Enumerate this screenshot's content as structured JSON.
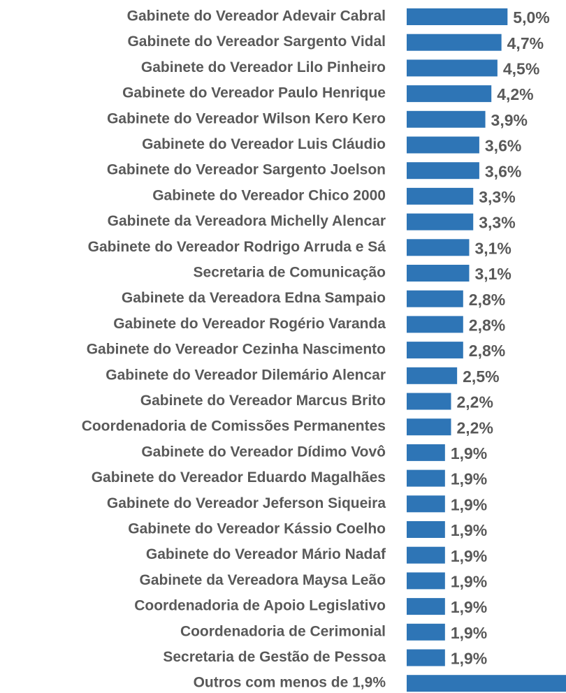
{
  "chart_data": {
    "type": "barh",
    "categories": [
      "Gabinete do Vereador Adevair Cabral",
      "Gabinete do Vereador Sargento Vidal",
      "Gabinete do Vereador Lilo Pinheiro",
      "Gabinete do Vereador Paulo Henrique",
      "Gabinete do Vereador Wilson Kero Kero",
      "Gabinete do Vereador Luis Cláudio",
      "Gabinete do Vereador Sargento Joelson",
      "Gabinete do Vereador Chico 2000",
      "Gabinete da Vereadora Michelly Alencar",
      "Gabinete do Vereador Rodrigo Arruda e Sá",
      "Secretaria de Comunicação",
      "Gabinete da Vereadora Edna Sampaio",
      "Gabinete do Vereador Rogério Varanda",
      "Gabinete do Vereador Cezinha Nascimento",
      "Gabinete do Vereador Dilemário Alencar",
      "Gabinete do Vereador Marcus Brito",
      "Coordenadoria de Comissões Permanentes",
      "Gabinete do Vereador Dídimo Vovô",
      "Gabinete do Vereador Eduardo Magalhães",
      "Gabinete do Vereador Jeferson Siqueira",
      "Gabinete do Vereador Kássio Coelho",
      "Gabinete do Vereador Mário Nadaf",
      "Gabinete da Vereadora Maysa Leão",
      "Coordenadoria de Apoio Legislativo",
      "Coordenadoria de Cerimonial",
      "Secretaria de Gestão de Pessoa",
      "Outros com menos de 1,9%"
    ],
    "values": [
      5.0,
      4.7,
      4.5,
      4.2,
      3.9,
      3.6,
      3.6,
      3.3,
      3.3,
      3.1,
      3.1,
      2.8,
      2.8,
      2.8,
      2.5,
      2.2,
      2.2,
      1.9,
      1.9,
      1.9,
      1.9,
      1.9,
      1.9,
      1.9,
      1.9,
      1.9,
      7.9
    ],
    "value_labels": [
      "5,0%",
      "4,7%",
      "4,5%",
      "4,2%",
      "3,9%",
      "3,6%",
      "3,6%",
      "3,3%",
      "3,3%",
      "3,1%",
      "3,1%",
      "2,8%",
      "2,8%",
      "2,8%",
      "2,5%",
      "2,2%",
      "2,2%",
      "1,9%",
      "1,9%",
      "1,9%",
      "1,9%",
      "1,9%",
      "1,9%",
      "1,9%",
      "1,9%",
      "1,9%",
      null
    ],
    "color": "#2e75b6",
    "xlim": [
      0,
      7.9
    ]
  }
}
